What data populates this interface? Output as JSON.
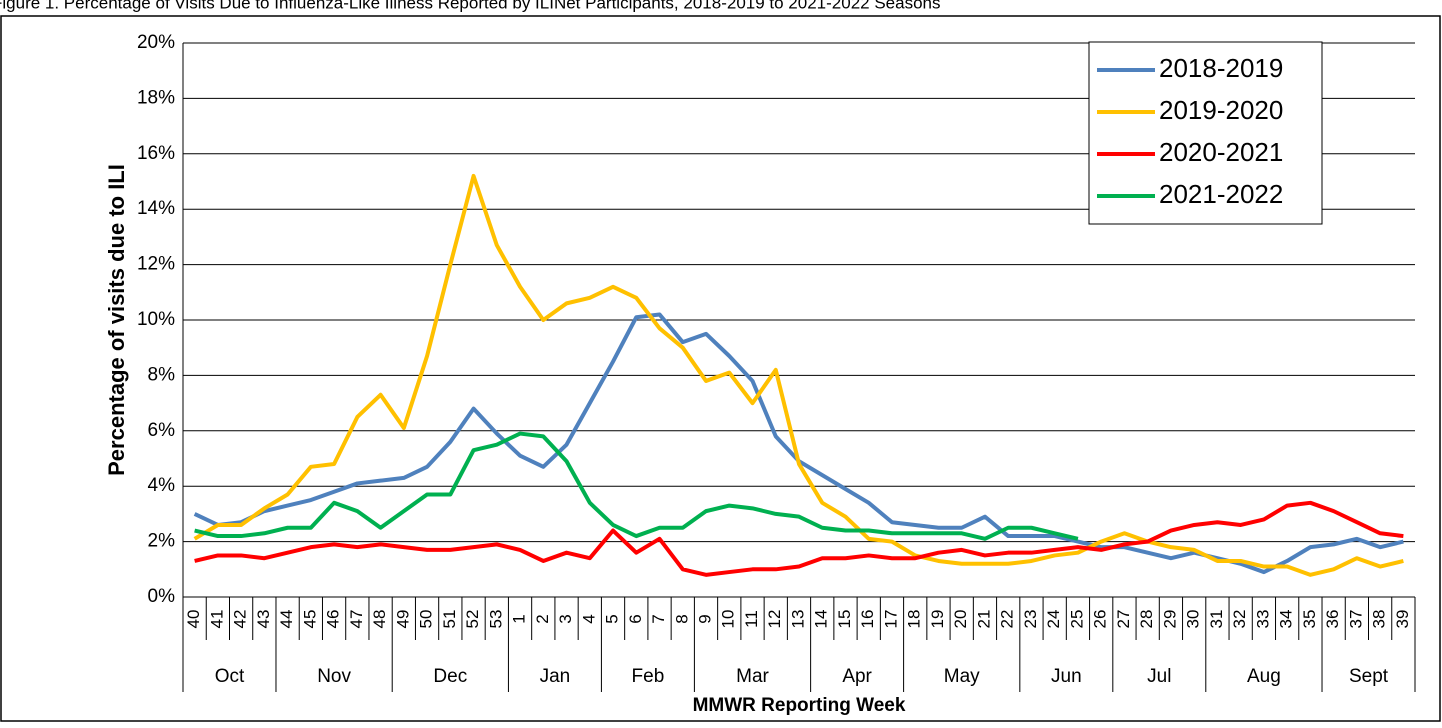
{
  "chart_data": {
    "type": "line",
    "title": "Figure 1. Percentage of Visits Due to Influenza-Like Illness Reported by ILINet Participants, 2018-2019 to 2021-2022 Seasons",
    "x_label": "MMWR Reporting Week",
    "y_label": "Percentage of visits due to ILI",
    "categories": [
      "40",
      "41",
      "42",
      "43",
      "44",
      "45",
      "46",
      "47",
      "48",
      "49",
      "50",
      "51",
      "52",
      "53",
      "1",
      "2",
      "3",
      "4",
      "5",
      "6",
      "7",
      "8",
      "9",
      "10",
      "11",
      "12",
      "13",
      "14",
      "15",
      "16",
      "17",
      "18",
      "19",
      "20",
      "21",
      "22",
      "23",
      "24",
      "25",
      "26",
      "27",
      "28",
      "29",
      "30",
      "31",
      "32",
      "33",
      "34",
      "35",
      "36",
      "37",
      "38",
      "39"
    ],
    "x_groups": [
      {
        "label": "Oct",
        "start": "40",
        "end": "43"
      },
      {
        "label": "Nov",
        "start": "44",
        "end": "48"
      },
      {
        "label": "Dec",
        "start": "49",
        "end": "53"
      },
      {
        "label": "Jan",
        "start": "1",
        "end": "4"
      },
      {
        "label": "Feb",
        "start": "5",
        "end": "8"
      },
      {
        "label": "Mar",
        "start": "9",
        "end": "13"
      },
      {
        "label": "Apr",
        "start": "14",
        "end": "17"
      },
      {
        "label": "May",
        "start": "18",
        "end": "22"
      },
      {
        "label": "Jun",
        "start": "23",
        "end": "26"
      },
      {
        "label": "Jul",
        "start": "27",
        "end": "30"
      },
      {
        "label": "Aug",
        "start": "31",
        "end": "35"
      },
      {
        "label": "Sept",
        "start": "36",
        "end": "39"
      }
    ],
    "series": [
      {
        "name": "2018-2019",
        "color": "#4f81bd",
        "values": [
          3.0,
          2.6,
          2.7,
          3.1,
          3.3,
          3.5,
          3.8,
          4.1,
          4.2,
          4.3,
          4.7,
          5.6,
          6.8,
          5.9,
          5.1,
          4.7,
          5.5,
          7.0,
          8.5,
          10.1,
          10.2,
          9.2,
          9.5,
          8.7,
          7.8,
          5.8,
          4.9,
          4.4,
          3.9,
          3.4,
          2.7,
          2.6,
          2.5,
          2.5,
          2.9,
          2.2,
          2.2,
          2.2,
          2.0,
          1.8,
          1.8,
          1.6,
          1.4,
          1.6,
          1.4,
          1.2,
          0.9,
          1.3,
          1.8,
          1.9,
          2.1,
          1.8,
          2.0
        ]
      },
      {
        "name": "2019-2020",
        "color": "#ffc000",
        "values": [
          2.1,
          2.6,
          2.6,
          3.2,
          3.7,
          4.7,
          4.8,
          6.5,
          7.3,
          6.1,
          8.7,
          12.0,
          15.2,
          12.7,
          11.2,
          10.0,
          10.6,
          10.8,
          11.2,
          10.8,
          9.7,
          9.0,
          7.8,
          8.1,
          7.0,
          8.2,
          4.8,
          3.4,
          2.9,
          2.1,
          2.0,
          1.5,
          1.3,
          1.2,
          1.2,
          1.2,
          1.3,
          1.5,
          1.6,
          2.0,
          2.3,
          2.0,
          1.8,
          1.7,
          1.3,
          1.3,
          1.1,
          1.1,
          0.8,
          1.0,
          1.4,
          1.1,
          1.3
        ]
      },
      {
        "name": "2020-2021",
        "color": "#ff0000",
        "values": [
          1.3,
          1.5,
          1.5,
          1.4,
          1.6,
          1.8,
          1.9,
          1.8,
          1.9,
          1.8,
          1.7,
          1.7,
          1.8,
          1.9,
          1.7,
          1.3,
          1.6,
          1.4,
          2.4,
          1.6,
          2.1,
          1.0,
          0.8,
          0.9,
          1.0,
          1.0,
          1.1,
          1.4,
          1.4,
          1.5,
          1.4,
          1.4,
          1.6,
          1.7,
          1.5,
          1.6,
          1.6,
          1.7,
          1.8,
          1.7,
          1.9,
          2.0,
          2.4,
          2.6,
          2.7,
          2.6,
          2.8,
          3.3,
          3.4,
          3.1,
          2.7,
          2.3,
          2.2
        ]
      },
      {
        "name": "2021-2022",
        "color": "#00b050",
        "values": [
          2.4,
          2.2,
          2.2,
          2.3,
          2.5,
          2.5,
          3.4,
          3.1,
          2.5,
          3.1,
          3.7,
          3.7,
          5.3,
          5.5,
          5.9,
          5.8,
          4.9,
          3.4,
          2.6,
          2.2,
          2.5,
          2.5,
          3.1,
          3.3,
          3.2,
          3.0,
          2.9,
          2.5,
          2.4,
          2.4,
          2.3,
          2.3,
          2.3,
          2.3,
          2.1,
          2.5,
          2.5,
          2.3,
          2.1,
          null,
          null,
          null,
          null,
          null,
          null,
          null,
          null,
          null,
          null,
          null,
          null,
          null,
          null
        ]
      }
    ],
    "ylim": [
      0,
      20
    ],
    "yticks": [
      {
        "value": 0,
        "label": "0%"
      },
      {
        "value": 2,
        "label": "2%"
      },
      {
        "value": 4,
        "label": "4%"
      },
      {
        "value": 6,
        "label": "6%"
      },
      {
        "value": 8,
        "label": "8%"
      },
      {
        "value": 10,
        "label": "10%"
      },
      {
        "value": 12,
        "label": "12%"
      },
      {
        "value": 14,
        "label": "14%"
      },
      {
        "value": 16,
        "label": "16%"
      },
      {
        "value": 18,
        "label": "18%"
      },
      {
        "value": 20,
        "label": "20%"
      }
    ],
    "grid": true,
    "legend": "top-right"
  }
}
